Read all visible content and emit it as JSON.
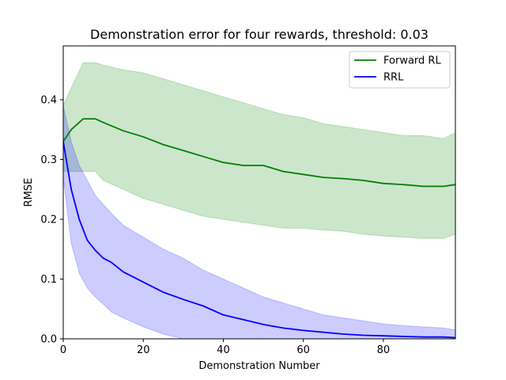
{
  "chart_data": {
    "type": "line",
    "title": "Demonstration error for four rewards, threshold: 0.03",
    "xlabel": "Demonstration Number",
    "ylabel": "RMSE",
    "xlim": [
      0,
      98
    ],
    "ylim": [
      0,
      0.49
    ],
    "xticks": [
      0,
      20,
      40,
      60,
      80
    ],
    "yticks": [
      0.0,
      0.1,
      0.2,
      0.3,
      0.4
    ],
    "xtick_labels": [
      "0",
      "20",
      "40",
      "60",
      "80"
    ],
    "ytick_labels": [
      "0.0",
      "0.1",
      "0.2",
      "0.3",
      "0.4"
    ],
    "grid": false,
    "legend_position": "top-right",
    "series": [
      {
        "name": "Forward RL",
        "color": "#008000",
        "band_color": "#008000",
        "x": [
          0,
          2,
          5,
          8,
          10,
          15,
          20,
          25,
          30,
          35,
          40,
          45,
          50,
          55,
          60,
          65,
          70,
          75,
          80,
          85,
          90,
          95,
          98
        ],
        "mean": [
          0.33,
          0.35,
          0.368,
          0.368,
          0.362,
          0.348,
          0.338,
          0.325,
          0.315,
          0.305,
          0.295,
          0.29,
          0.29,
          0.28,
          0.275,
          0.27,
          0.268,
          0.265,
          0.26,
          0.258,
          0.255,
          0.255,
          0.258
        ],
        "upper": [
          0.39,
          0.42,
          0.462,
          0.462,
          0.458,
          0.45,
          0.445,
          0.435,
          0.425,
          0.415,
          0.405,
          0.395,
          0.385,
          0.375,
          0.37,
          0.36,
          0.355,
          0.35,
          0.345,
          0.34,
          0.34,
          0.335,
          0.345
        ],
        "lower": [
          0.28,
          0.28,
          0.28,
          0.28,
          0.265,
          0.25,
          0.235,
          0.225,
          0.215,
          0.205,
          0.2,
          0.195,
          0.19,
          0.185,
          0.185,
          0.182,
          0.18,
          0.175,
          0.172,
          0.17,
          0.168,
          0.168,
          0.175
        ]
      },
      {
        "name": "RRL",
        "color": "#0000ff",
        "band_color": "#0000ff",
        "x": [
          0,
          2,
          4,
          6,
          8,
          10,
          12,
          15,
          20,
          25,
          30,
          35,
          40,
          45,
          50,
          55,
          60,
          65,
          70,
          75,
          80,
          85,
          90,
          95,
          98
        ],
        "mean": [
          0.33,
          0.25,
          0.2,
          0.165,
          0.148,
          0.135,
          0.128,
          0.112,
          0.095,
          0.078,
          0.066,
          0.055,
          0.04,
          0.032,
          0.024,
          0.018,
          0.014,
          0.011,
          0.008,
          0.006,
          0.005,
          0.004,
          0.003,
          0.003,
          0.002
        ],
        "upper": [
          0.39,
          0.33,
          0.29,
          0.265,
          0.24,
          0.225,
          0.21,
          0.19,
          0.17,
          0.15,
          0.135,
          0.115,
          0.1,
          0.085,
          0.07,
          0.06,
          0.05,
          0.04,
          0.035,
          0.03,
          0.025,
          0.022,
          0.02,
          0.018,
          0.015
        ],
        "lower": [
          0.27,
          0.16,
          0.11,
          0.085,
          0.07,
          0.058,
          0.045,
          0.035,
          0.02,
          0.008,
          0.0,
          0.0,
          0.0,
          0.0,
          0.0,
          0.0,
          0.0,
          0.0,
          0.0,
          0.0,
          0.0,
          0.0,
          0.0,
          0.0,
          0.0
        ]
      }
    ]
  }
}
